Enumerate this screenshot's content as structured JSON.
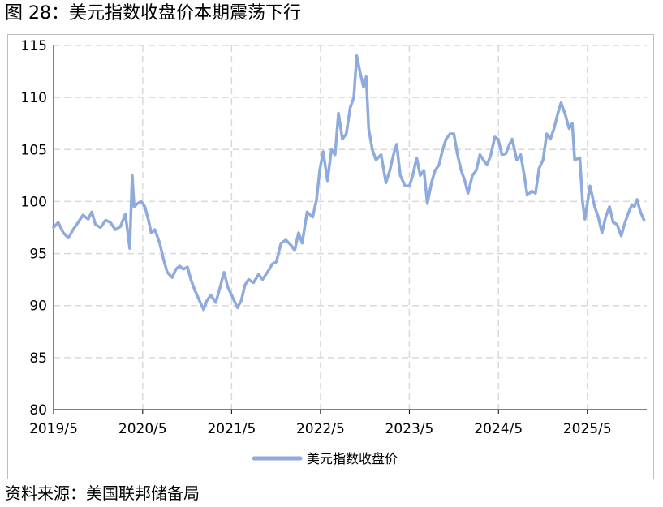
{
  "figure": {
    "title": "图 28：美元指数收盘价本期震荡下行",
    "source": "资料来源：美国联邦储备局"
  },
  "chart_data": {
    "type": "line",
    "title": "",
    "xlabel": "",
    "ylabel": "",
    "ylim": [
      80,
      115
    ],
    "yticks": [
      80,
      85,
      90,
      95,
      100,
      105,
      110,
      115
    ],
    "xlim": [
      "2019-05-01",
      "2025-12-31"
    ],
    "xticks": [
      {
        "date": "2019-05-01",
        "label": "2019/5"
      },
      {
        "date": "2020-05-01",
        "label": "2020/5"
      },
      {
        "date": "2021-05-01",
        "label": "2021/5"
      },
      {
        "date": "2022-05-01",
        "label": "2022/5"
      },
      {
        "date": "2023-05-01",
        "label": "2023/5"
      },
      {
        "date": "2024-05-01",
        "label": "2024/5"
      },
      {
        "date": "2025-05-01",
        "label": "2025/5"
      }
    ],
    "grid": {
      "horizontal": true,
      "vertical": true,
      "style": "dashed"
    },
    "legend": {
      "position": "bottom"
    },
    "series": [
      {
        "name": "美元指数收盘价",
        "color": "#8faadc",
        "points": [
          [
            "2019-05-01",
            97.5
          ],
          [
            "2019-05-20",
            98.0
          ],
          [
            "2019-06-10",
            97.0
          ],
          [
            "2019-07-01",
            96.5
          ],
          [
            "2019-07-20",
            97.3
          ],
          [
            "2019-08-10",
            98.0
          ],
          [
            "2019-08-30",
            98.7
          ],
          [
            "2019-09-20",
            98.3
          ],
          [
            "2019-10-05",
            99.0
          ],
          [
            "2019-10-20",
            97.8
          ],
          [
            "2019-11-10",
            97.5
          ],
          [
            "2019-12-01",
            98.2
          ],
          [
            "2019-12-20",
            98.0
          ],
          [
            "2020-01-10",
            97.3
          ],
          [
            "2020-01-31",
            97.6
          ],
          [
            "2020-02-20",
            98.8
          ],
          [
            "2020-03-09",
            95.5
          ],
          [
            "2020-03-19",
            102.5
          ],
          [
            "2020-03-27",
            99.5
          ],
          [
            "2020-04-10",
            99.8
          ],
          [
            "2020-04-25",
            100.0
          ],
          [
            "2020-05-10",
            99.5
          ],
          [
            "2020-05-25",
            98.2
          ],
          [
            "2020-06-05",
            97.0
          ],
          [
            "2020-06-20",
            97.3
          ],
          [
            "2020-07-10",
            96.0
          ],
          [
            "2020-07-25",
            94.5
          ],
          [
            "2020-08-10",
            93.2
          ],
          [
            "2020-08-30",
            92.7
          ],
          [
            "2020-09-15",
            93.5
          ],
          [
            "2020-09-30",
            93.8
          ],
          [
            "2020-10-15",
            93.5
          ],
          [
            "2020-11-01",
            93.7
          ],
          [
            "2020-11-15",
            92.5
          ],
          [
            "2020-12-01",
            91.5
          ],
          [
            "2020-12-20",
            90.5
          ],
          [
            "2021-01-06",
            89.6
          ],
          [
            "2021-01-20",
            90.5
          ],
          [
            "2021-02-05",
            91.0
          ],
          [
            "2021-02-25",
            90.3
          ],
          [
            "2021-03-15",
            91.8
          ],
          [
            "2021-03-31",
            93.2
          ],
          [
            "2021-04-15",
            91.8
          ],
          [
            "2021-05-01",
            91.0
          ],
          [
            "2021-05-25",
            89.8
          ],
          [
            "2021-06-10",
            90.5
          ],
          [
            "2021-06-25",
            92.0
          ],
          [
            "2021-07-10",
            92.5
          ],
          [
            "2021-07-30",
            92.2
          ],
          [
            "2021-08-20",
            93.0
          ],
          [
            "2021-09-05",
            92.5
          ],
          [
            "2021-09-25",
            93.2
          ],
          [
            "2021-10-15",
            94.0
          ],
          [
            "2021-11-01",
            94.2
          ],
          [
            "2021-11-20",
            96.0
          ],
          [
            "2021-12-10",
            96.3
          ],
          [
            "2021-12-31",
            95.8
          ],
          [
            "2022-01-15",
            95.3
          ],
          [
            "2022-01-31",
            97.0
          ],
          [
            "2022-02-15",
            96.0
          ],
          [
            "2022-03-07",
            99.0
          ],
          [
            "2022-03-30",
            98.5
          ],
          [
            "2022-04-15",
            100.2
          ],
          [
            "2022-04-28",
            103.0
          ],
          [
            "2022-05-12",
            104.8
          ],
          [
            "2022-05-30",
            102.0
          ],
          [
            "2022-06-15",
            105.0
          ],
          [
            "2022-06-30",
            104.5
          ],
          [
            "2022-07-14",
            108.5
          ],
          [
            "2022-07-30",
            106.0
          ],
          [
            "2022-08-15",
            106.5
          ],
          [
            "2022-08-31",
            109.0
          ],
          [
            "2022-09-15",
            110.0
          ],
          [
            "2022-09-27",
            114.0
          ],
          [
            "2022-10-10",
            112.5
          ],
          [
            "2022-10-25",
            111.0
          ],
          [
            "2022-11-05",
            112.0
          ],
          [
            "2022-11-15",
            107.0
          ],
          [
            "2022-11-30",
            105.0
          ],
          [
            "2022-12-15",
            104.0
          ],
          [
            "2023-01-05",
            104.5
          ],
          [
            "2023-01-25",
            101.8
          ],
          [
            "2023-02-10",
            103.0
          ],
          [
            "2023-02-28",
            104.8
          ],
          [
            "2023-03-10",
            105.5
          ],
          [
            "2023-03-25",
            102.5
          ],
          [
            "2023-04-14",
            101.5
          ],
          [
            "2023-05-01",
            101.5
          ],
          [
            "2023-05-15",
            102.5
          ],
          [
            "2023-05-31",
            104.2
          ],
          [
            "2023-06-15",
            102.5
          ],
          [
            "2023-06-30",
            103.0
          ],
          [
            "2023-07-14",
            99.8
          ],
          [
            "2023-07-31",
            101.8
          ],
          [
            "2023-08-15",
            103.0
          ],
          [
            "2023-08-31",
            103.5
          ],
          [
            "2023-09-15",
            105.0
          ],
          [
            "2023-09-29",
            106.0
          ],
          [
            "2023-10-15",
            106.5
          ],
          [
            "2023-10-31",
            106.5
          ],
          [
            "2023-11-15",
            104.5
          ],
          [
            "2023-11-30",
            103.0
          ],
          [
            "2023-12-15",
            102.0
          ],
          [
            "2023-12-28",
            100.8
          ],
          [
            "2024-01-15",
            102.5
          ],
          [
            "2024-01-31",
            103.0
          ],
          [
            "2024-02-15",
            104.5
          ],
          [
            "2024-02-29",
            104.0
          ],
          [
            "2024-03-15",
            103.5
          ],
          [
            "2024-03-31",
            104.5
          ],
          [
            "2024-04-16",
            106.2
          ],
          [
            "2024-04-30",
            106.0
          ],
          [
            "2024-05-15",
            104.5
          ],
          [
            "2024-05-31",
            104.6
          ],
          [
            "2024-06-15",
            105.5
          ],
          [
            "2024-06-26",
            106.0
          ],
          [
            "2024-07-15",
            104.0
          ],
          [
            "2024-07-31",
            104.5
          ],
          [
            "2024-08-15",
            102.5
          ],
          [
            "2024-08-27",
            100.6
          ],
          [
            "2024-09-15",
            101.0
          ],
          [
            "2024-09-30",
            100.8
          ],
          [
            "2024-10-15",
            103.2
          ],
          [
            "2024-10-31",
            104.0
          ],
          [
            "2024-11-15",
            106.5
          ],
          [
            "2024-11-30",
            106.0
          ],
          [
            "2024-12-15",
            107.0
          ],
          [
            "2024-12-31",
            108.5
          ],
          [
            "2025-01-13",
            109.5
          ],
          [
            "2025-01-31",
            108.3
          ],
          [
            "2025-02-15",
            107.0
          ],
          [
            "2025-02-28",
            107.5
          ],
          [
            "2025-03-10",
            104.0
          ],
          [
            "2025-03-31",
            104.2
          ],
          [
            "2025-04-11",
            100.0
          ],
          [
            "2025-04-21",
            98.3
          ],
          [
            "2025-05-12",
            101.5
          ],
          [
            "2025-05-31",
            99.5
          ],
          [
            "2025-06-15",
            98.5
          ],
          [
            "2025-06-30",
            97.0
          ],
          [
            "2025-07-15",
            98.5
          ],
          [
            "2025-07-31",
            99.5
          ],
          [
            "2025-08-15",
            98.0
          ],
          [
            "2025-08-31",
            97.8
          ],
          [
            "2025-09-17",
            96.7
          ],
          [
            "2025-09-30",
            97.8
          ],
          [
            "2025-10-15",
            98.8
          ],
          [
            "2025-10-31",
            99.7
          ],
          [
            "2025-11-10",
            99.5
          ],
          [
            "2025-11-21",
            100.2
          ],
          [
            "2025-12-05",
            99.0
          ],
          [
            "2025-12-20",
            98.2
          ]
        ]
      }
    ]
  }
}
